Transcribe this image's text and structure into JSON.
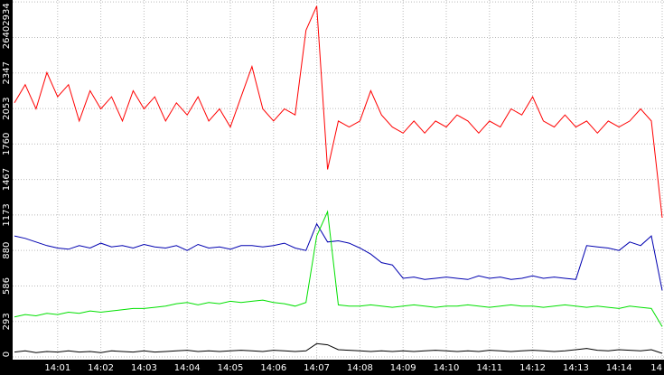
{
  "chart_data": {
    "type": "line",
    "x": [
      0,
      0.25,
      0.5,
      0.75,
      1,
      1.25,
      1.5,
      1.75,
      2,
      2.25,
      2.5,
      2.75,
      3,
      3.25,
      3.5,
      3.75,
      4,
      4.25,
      4.5,
      4.75,
      5,
      5.25,
      5.5,
      5.75,
      6,
      6.25,
      6.5,
      6.75,
      7,
      7.25,
      7.5,
      7.75,
      8,
      8.25,
      8.5,
      8.75,
      9,
      9.25,
      9.5,
      9.75,
      10,
      10.25,
      10.5,
      10.75,
      11,
      11.25,
      11.5,
      11.75,
      12,
      12.25,
      12.5,
      12.75,
      13,
      13.25,
      13.5,
      13.75,
      14,
      14.25,
      14.5,
      14.75,
      15
    ],
    "series": [
      {
        "color": "#ff0000",
        "values": [
          2100,
          2250,
          2050,
          2350,
          2150,
          2250,
          1950,
          2200,
          2050,
          2150,
          1950,
          2200,
          2050,
          2150,
          1950,
          2100,
          2000,
          2150,
          1950,
          2050,
          1900,
          2150,
          2400,
          2050,
          1950,
          2050,
          2000,
          2700,
          2900,
          1550,
          1950,
          1900,
          1950,
          2200,
          2000,
          1900,
          1850,
          1950,
          1850,
          1950,
          1900,
          2000,
          1950,
          1850,
          1950,
          1900,
          2050,
          2000,
          2150,
          1950,
          1900,
          2000,
          1900,
          1950,
          1850,
          1950,
          1900,
          1950,
          2050,
          1950,
          1150
        ]
      },
      {
        "color": "#0000b0",
        "values": [
          1000,
          980,
          950,
          920,
          900,
          890,
          920,
          900,
          940,
          910,
          920,
          900,
          930,
          910,
          900,
          920,
          880,
          930,
          900,
          910,
          890,
          920,
          920,
          910,
          920,
          940,
          900,
          880,
          1100,
          950,
          960,
          940,
          900,
          850,
          780,
          760,
          650,
          660,
          640,
          650,
          660,
          650,
          640,
          670,
          650,
          660,
          640,
          650,
          670,
          650,
          660,
          650,
          640,
          920,
          910,
          900,
          880,
          950,
          920,
          1000,
          550
        ]
      },
      {
        "color": "#00e000",
        "values": [
          330,
          350,
          340,
          360,
          350,
          370,
          360,
          380,
          370,
          380,
          390,
          400,
          400,
          410,
          420,
          440,
          450,
          430,
          450,
          440,
          460,
          450,
          460,
          470,
          450,
          440,
          420,
          450,
          1000,
          1200,
          430,
          420,
          420,
          430,
          420,
          410,
          420,
          430,
          420,
          410,
          420,
          420,
          430,
          420,
          410,
          420,
          430,
          420,
          420,
          410,
          420,
          430,
          420,
          410,
          420,
          410,
          400,
          420,
          410,
          400,
          250
        ]
      },
      {
        "color": "#000000",
        "values": [
          40,
          50,
          35,
          45,
          40,
          50,
          40,
          45,
          35,
          50,
          45,
          40,
          50,
          40,
          45,
          50,
          55,
          45,
          50,
          45,
          50,
          55,
          50,
          45,
          55,
          50,
          45,
          50,
          110,
          100,
          60,
          55,
          50,
          45,
          50,
          45,
          50,
          45,
          50,
          55,
          50,
          45,
          50,
          45,
          55,
          50,
          45,
          50,
          55,
          50,
          45,
          50,
          60,
          70,
          55,
          50,
          60,
          55,
          50,
          60,
          30
        ]
      }
    ],
    "xlim": [
      0,
      15
    ],
    "ylim": [
      0,
      2950
    ],
    "xticks": [
      {
        "value": 1,
        "label": "14:01"
      },
      {
        "value": 2,
        "label": "14:02"
      },
      {
        "value": 3,
        "label": "14:03"
      },
      {
        "value": 4,
        "label": "14:04"
      },
      {
        "value": 5,
        "label": "14:05"
      },
      {
        "value": 6,
        "label": "14:06"
      },
      {
        "value": 7,
        "label": "14:07"
      },
      {
        "value": 8,
        "label": "14:08"
      },
      {
        "value": 9,
        "label": "14:09"
      },
      {
        "value": 10,
        "label": "14:10"
      },
      {
        "value": 11,
        "label": "14:11"
      },
      {
        "value": 12,
        "label": "14:12"
      },
      {
        "value": 13,
        "label": "14:13"
      },
      {
        "value": 14,
        "label": "14:14"
      },
      {
        "value": 15,
        "label": "14"
      }
    ],
    "yticks": [
      0,
      293,
      586,
      880,
      1173,
      1467,
      1760,
      2053,
      2347,
      2640,
      2934
    ],
    "grid": true
  }
}
